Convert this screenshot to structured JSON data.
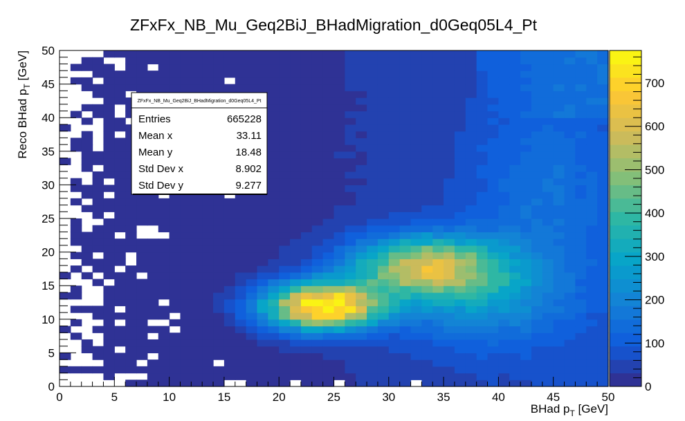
{
  "chart_data": {
    "type": "heatmap",
    "title": "ZFxFx_NB_Mu_Geq2BiJ_BHadMigration_d0Geq05L4_Pt",
    "xlabel": {
      "main": "BHad p",
      "sub": "T",
      "unit": " [GeV]"
    },
    "ylabel": {
      "main": "Reco BHad p",
      "sub": "T",
      "unit": " [GeV]"
    },
    "xlim": [
      0,
      50
    ],
    "ylim": [
      0,
      50
    ],
    "zlim": [
      0,
      775
    ],
    "nbins_x": 50,
    "nbins_y": 50,
    "x_ticks": [
      "0",
      "5",
      "10",
      "15",
      "20",
      "25",
      "30",
      "35",
      "40",
      "45",
      "50"
    ],
    "y_ticks": [
      "0",
      "5",
      "10",
      "15",
      "20",
      "25",
      "30",
      "35",
      "40",
      "45",
      "50"
    ],
    "z_ticks": [
      "0",
      "100",
      "200",
      "300",
      "400",
      "500",
      "600",
      "700"
    ],
    "peak": {
      "x": 24,
      "y": 12,
      "value": 770
    },
    "colormap": [
      "#352a87",
      "#0f5cdd",
      "#1481d6",
      "#06a4ca",
      "#2eb7a4",
      "#87bf77",
      "#d1bb59",
      "#fec832",
      "#f9fb0e"
    ],
    "stats": {
      "name": "ZFxFx_NB_Mu_Geq2BiJ_BHadMigration_d0Geq05L4_Pt",
      "rows": [
        {
          "label": "Entries",
          "value": "665228"
        },
        {
          "label": "Mean x",
          "value": "33.11"
        },
        {
          "label": "Mean y",
          "value": "18.48"
        },
        {
          "label": "Std Dev x",
          "value": "8.902"
        },
        {
          "label": "Std Dev y",
          "value": "9.277"
        }
      ]
    }
  }
}
